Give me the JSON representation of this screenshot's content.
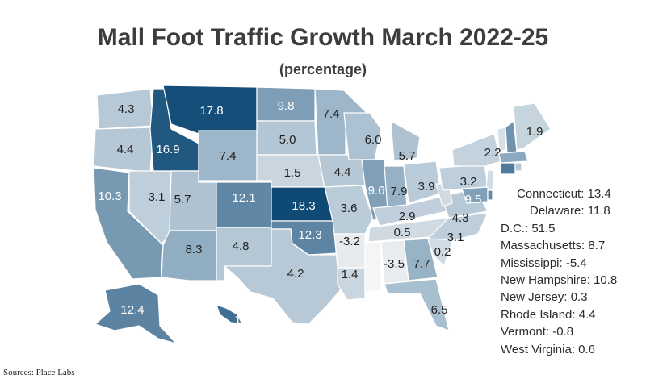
{
  "title": "Mall Foot Traffic Growth March 2022-25",
  "subtitle": "(percentage)",
  "source": "Sources: Place Labs",
  "colors": {
    "low": "#f5f5f5",
    "mid": "#a9bfd0",
    "high": "#0f4a75",
    "border": "#ffffff"
  },
  "chart_data": {
    "type": "choropleth",
    "unit": "percentage",
    "states": [
      {
        "state": "Washington",
        "label": "4.3"
      },
      {
        "state": "Oregon",
        "label": "4.4"
      },
      {
        "state": "California",
        "label": "10.3"
      },
      {
        "state": "Nevada",
        "label": "3.1"
      },
      {
        "state": "Idaho",
        "label": "16.9"
      },
      {
        "state": "Montana",
        "label": "17.8"
      },
      {
        "state": "Wyoming",
        "label": "7.4"
      },
      {
        "state": "Utah",
        "label": "5.7"
      },
      {
        "state": "Arizona",
        "label": "8.3"
      },
      {
        "state": "Colorado",
        "label": "12.1"
      },
      {
        "state": "New Mexico",
        "label": "4.8"
      },
      {
        "state": "North Dakota",
        "label": "9.8"
      },
      {
        "state": "South Dakota",
        "label": "5.0"
      },
      {
        "state": "Nebraska",
        "label": "1.5"
      },
      {
        "state": "Kansas",
        "label": "18.3"
      },
      {
        "state": "Oklahoma",
        "label": "12.3"
      },
      {
        "state": "Texas",
        "label": "4.2"
      },
      {
        "state": "Minnesota",
        "label": "7.4"
      },
      {
        "state": "Iowa",
        "label": "4.4"
      },
      {
        "state": "Missouri",
        "label": "3.6"
      },
      {
        "state": "Arkansas",
        "label": "-3.2"
      },
      {
        "state": "Louisiana",
        "label": "1.4"
      },
      {
        "state": "Wisconsin",
        "label": "6.0"
      },
      {
        "state": "Illinois",
        "label": "9.6"
      },
      {
        "state": "Michigan",
        "label": "5.7"
      },
      {
        "state": "Indiana",
        "label": "7.9"
      },
      {
        "state": "Ohio",
        "label": "3.9"
      },
      {
        "state": "Kentucky",
        "label": "2.9"
      },
      {
        "state": "Tennessee",
        "label": "0.5"
      },
      {
        "state": "Alabama",
        "label": "-3.5"
      },
      {
        "state": "Georgia",
        "label": "7.7"
      },
      {
        "state": "Florida",
        "label": "6.5"
      },
      {
        "state": "South Carolina",
        "label": "0.2"
      },
      {
        "state": "North Carolina",
        "label": "3.1"
      },
      {
        "state": "Virginia",
        "label": "4.3"
      },
      {
        "state": "Pennsylvania",
        "label": "3.2"
      },
      {
        "state": "New York",
        "label": "2.2"
      },
      {
        "state": "Maine",
        "label": "1.9"
      },
      {
        "state": "Maryland",
        "label": "9.5"
      },
      {
        "state": "Alaska",
        "label": "12.4"
      },
      {
        "state": "Hawaii",
        "label": "14.6"
      }
    ],
    "legend_list": [
      {
        "state": "Connecticut",
        "label": "Connecticut: 13.4"
      },
      {
        "state": "Delaware",
        "label": "Delaware: 11.8"
      },
      {
        "state": "D.C.",
        "label": "D.C.: 51.5"
      },
      {
        "state": "Massachusetts",
        "label": "Massachusetts: 8.7"
      },
      {
        "state": "Mississippi",
        "label": "Mississippi: -5.4"
      },
      {
        "state": "New Hampshire",
        "label": "New Hampshire: 10.8"
      },
      {
        "state": "New Jersey",
        "label": "New Jersey: 0.3"
      },
      {
        "state": "Rhode Island",
        "label": "Rhode Island: 4.4"
      },
      {
        "state": "Vermont",
        "label": "Vermont: -0.8"
      },
      {
        "state": "West Virginia",
        "label": "West Virginia: 0.6"
      }
    ]
  }
}
